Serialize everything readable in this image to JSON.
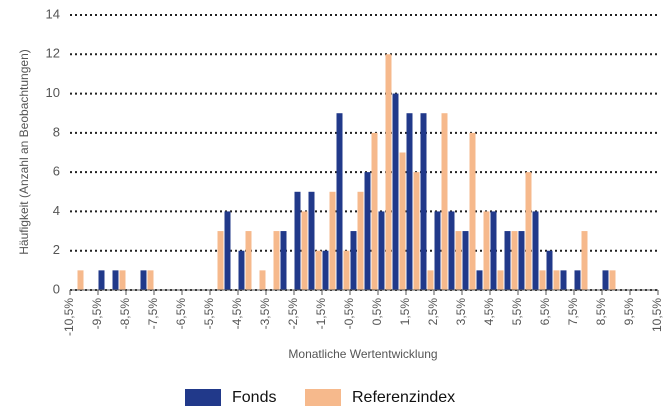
{
  "chart_data": {
    "type": "grouped-histogram",
    "xlabel": "Monatliche Wertentwicklung",
    "ylabel": "Häufigkeit (Anzahl an Beobachtungen)",
    "bins": [
      -10.5,
      -10,
      -9.5,
      -9,
      -8.5,
      -8,
      -7.5,
      -7,
      -6.5,
      -6,
      -5.5,
      -5,
      -4.5,
      -4,
      -3.5,
      -3,
      -2.5,
      -2,
      -1.5,
      -1,
      -0.5,
      0,
      0.5,
      1,
      1.5,
      2,
      2.5,
      3,
      3.5,
      4,
      4.5,
      5,
      5.5,
      6,
      6.5,
      7,
      7.5,
      8,
      8.5,
      9,
      9.5,
      10,
      10.5
    ],
    "series": [
      {
        "name": "Fonds",
        "color": "#21398a",
        "values": [
          0,
          0,
          1,
          1,
          0,
          1,
          0,
          0,
          0,
          0,
          0,
          4,
          2,
          0,
          0,
          3,
          5,
          5,
          2,
          9,
          3,
          6,
          4,
          10,
          9,
          9,
          4,
          4,
          3,
          1,
          4,
          3,
          3,
          4,
          2,
          1,
          1,
          0,
          1,
          0,
          0,
          0
        ]
      },
      {
        "name": "Referenzindex",
        "color": "#f6b98c",
        "values": [
          1,
          0,
          0,
          1,
          0,
          1,
          0,
          0,
          0,
          0,
          3,
          0,
          3,
          1,
          3,
          0,
          4,
          2,
          5,
          2,
          5,
          8,
          12,
          7,
          6,
          1,
          9,
          3,
          8,
          4,
          1,
          3,
          6,
          1,
          1,
          0,
          3,
          0,
          1,
          0,
          0,
          0
        ]
      }
    ],
    "xlim": [
      -10.5,
      10.5
    ],
    "xticks": [
      {
        "value": -10.5,
        "label": "-10,5%"
      },
      {
        "value": -9.5,
        "label": "-9,5%"
      },
      {
        "value": -8.5,
        "label": "-8,5%"
      },
      {
        "value": -7.5,
        "label": "-7,5%"
      },
      {
        "value": -6.5,
        "label": "-6,5%"
      },
      {
        "value": -5.5,
        "label": "-5,5%"
      },
      {
        "value": -4.5,
        "label": "-4,5%"
      },
      {
        "value": -3.5,
        "label": "-3,5%"
      },
      {
        "value": -2.5,
        "label": "-2,5%"
      },
      {
        "value": -1.5,
        "label": "-1,5%"
      },
      {
        "value": -0.5,
        "label": "-0,5%"
      },
      {
        "value": 0.5,
        "label": "0,5%"
      },
      {
        "value": 1.5,
        "label": "1,5%"
      },
      {
        "value": 2.5,
        "label": "2,5%"
      },
      {
        "value": 3.5,
        "label": "3,5%"
      },
      {
        "value": 4.5,
        "label": "4,5%"
      },
      {
        "value": 5.5,
        "label": "5,5%"
      },
      {
        "value": 6.5,
        "label": "6,5%"
      },
      {
        "value": 7.5,
        "label": "7,5%"
      },
      {
        "value": 8.5,
        "label": "8,5%"
      },
      {
        "value": 9.5,
        "label": "9,5%"
      },
      {
        "value": 10.5,
        "label": "10,5%"
      }
    ],
    "ylim": [
      0,
      14
    ],
    "yticks": [
      0,
      2,
      4,
      6,
      8,
      10,
      12,
      14
    ],
    "grid": true,
    "legend": "bottom"
  }
}
